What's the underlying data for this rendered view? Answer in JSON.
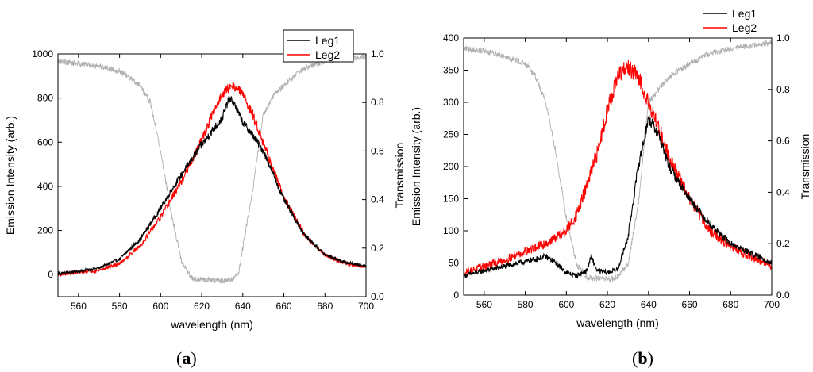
{
  "chart_data": [
    {
      "type": "line",
      "panel_label": {
        "open": "(",
        "letter": "a",
        "close": ")"
      },
      "xlabel": "wavelength (nm)",
      "ylabel": "Emission Intensity (arb.)",
      "y2label": "Transmission",
      "xlim": [
        550,
        700
      ],
      "ylim": [
        -100,
        1000
      ],
      "y2lim": [
        0.0,
        1.0
      ],
      "xticks": [
        560,
        580,
        600,
        620,
        640,
        660,
        680,
        700
      ],
      "yticks": [
        0,
        200,
        400,
        600,
        800,
        1000
      ],
      "y2ticks": [
        "0.0",
        "0.2",
        "0.4",
        "0.6",
        "0.8",
        "1.0"
      ],
      "legend": {
        "position": "top-right",
        "entries": [
          "Leg1",
          "Leg2"
        ]
      },
      "series": [
        {
          "name": "Leg1",
          "color": "#000000",
          "axis": "left",
          "x": [
            550,
            560,
            570,
            580,
            590,
            600,
            605,
            610,
            615,
            620,
            625,
            630,
            633,
            635,
            640,
            645,
            650,
            655,
            660,
            670,
            680,
            690,
            700
          ],
          "y": [
            5,
            15,
            30,
            70,
            160,
            300,
            380,
            450,
            520,
            590,
            650,
            710,
            790,
            790,
            690,
            630,
            560,
            450,
            340,
            180,
            90,
            55,
            40
          ]
        },
        {
          "name": "Leg2",
          "color": "#ff0000",
          "axis": "left",
          "x": [
            550,
            560,
            570,
            580,
            590,
            600,
            605,
            610,
            615,
            620,
            625,
            630,
            635,
            640,
            645,
            650,
            655,
            660,
            670,
            680,
            690,
            700
          ],
          "y": [
            0,
            10,
            20,
            50,
            130,
            260,
            340,
            420,
            510,
            610,
            720,
            820,
            860,
            820,
            720,
            600,
            470,
            350,
            180,
            90,
            50,
            35
          ]
        },
        {
          "name": "Transmission",
          "color": "#b0b0b0",
          "axis": "right",
          "x": [
            550,
            560,
            570,
            580,
            590,
            595,
            600,
            605,
            610,
            615,
            620,
            630,
            635,
            638,
            640,
            645,
            650,
            655,
            660,
            665,
            670,
            680,
            690,
            700
          ],
          "y": [
            0.97,
            0.96,
            0.95,
            0.93,
            0.87,
            0.8,
            0.6,
            0.35,
            0.15,
            0.075,
            0.07,
            0.065,
            0.07,
            0.1,
            0.2,
            0.45,
            0.75,
            0.83,
            0.87,
            0.91,
            0.94,
            0.97,
            0.98,
            0.99
          ]
        }
      ]
    },
    {
      "type": "line",
      "panel_label": {
        "open": "(",
        "letter": "b",
        "close": ")"
      },
      "xlabel": "wavelength (nm)",
      "ylabel": "Emission Intensity (arb.)",
      "y2label": "Transmission",
      "xlim": [
        550,
        700
      ],
      "ylim": [
        0,
        400
      ],
      "y2lim": [
        0.0,
        1.0
      ],
      "xticks": [
        560,
        580,
        600,
        620,
        640,
        660,
        680,
        700
      ],
      "yticks": [
        0,
        50,
        100,
        150,
        200,
        250,
        300,
        350,
        400
      ],
      "y2ticks": [
        "0.0",
        "0.2",
        "0.4",
        "0.6",
        "0.8",
        "1.0"
      ],
      "legend": {
        "position": "top-right",
        "entries": [
          "Leg1",
          "Leg2"
        ]
      },
      "series": [
        {
          "name": "Leg1",
          "color": "#000000",
          "axis": "left",
          "x": [
            550,
            560,
            570,
            580,
            590,
            595,
            600,
            605,
            610,
            612,
            615,
            620,
            625,
            630,
            635,
            640,
            645,
            650,
            660,
            670,
            680,
            690,
            700
          ],
          "y": [
            30,
            38,
            45,
            52,
            60,
            50,
            35,
            30,
            38,
            60,
            38,
            35,
            40,
            90,
            200,
            275,
            250,
            200,
            150,
            110,
            80,
            65,
            50
          ]
        },
        {
          "name": "Leg2",
          "color": "#ff0000",
          "axis": "left",
          "x": [
            550,
            560,
            570,
            580,
            590,
            600,
            605,
            610,
            615,
            620,
            625,
            630,
            635,
            640,
            645,
            650,
            660,
            670,
            680,
            690,
            700
          ],
          "y": [
            35,
            45,
            55,
            68,
            80,
            100,
            125,
            170,
            220,
            290,
            340,
            355,
            340,
            300,
            260,
            215,
            150,
            100,
            75,
            60,
            45
          ]
        },
        {
          "name": "Transmission",
          "color": "#b0b0b0",
          "axis": "right",
          "x": [
            550,
            560,
            570,
            580,
            585,
            590,
            595,
            600,
            605,
            610,
            620,
            625,
            630,
            635,
            640,
            645,
            650,
            660,
            670,
            680,
            690,
            700
          ],
          "y": [
            0.96,
            0.95,
            0.93,
            0.9,
            0.85,
            0.75,
            0.55,
            0.3,
            0.12,
            0.07,
            0.06,
            0.07,
            0.12,
            0.35,
            0.75,
            0.8,
            0.85,
            0.9,
            0.94,
            0.96,
            0.97,
            0.98
          ]
        }
      ]
    }
  ]
}
